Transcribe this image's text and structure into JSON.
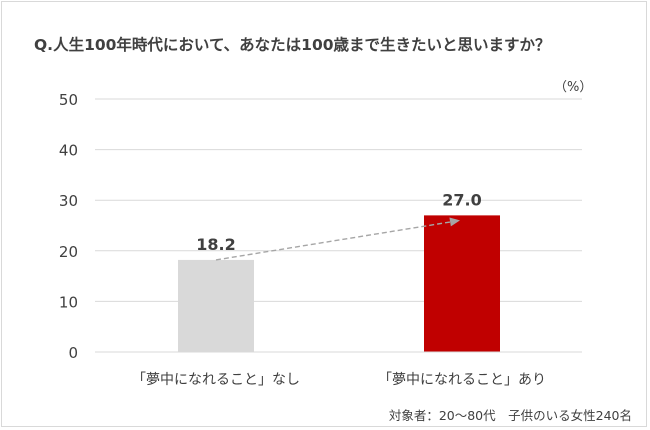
{
  "title": "Q.人生100年時代において、あなたは100歳まで生きたいと思いますか？",
  "unit": "（%）",
  "note": "対象者：20～80代　子供のいる女性240名",
  "colors": {
    "bar_without": "#d9d9d9",
    "bar_with": "#c00000",
    "grid": "#d9d9d9",
    "arrow": "#a6a6a6"
  },
  "chart_data": {
    "type": "bar",
    "categories": [
      "「夢中になれること」なし",
      "「夢中になれること」あり"
    ],
    "values": [
      18.2,
      27.0
    ],
    "value_labels": [
      "18.2",
      "27.0"
    ],
    "ylim": [
      0,
      50
    ],
    "yticks": [
      "0",
      "10",
      "20",
      "30",
      "40",
      "50"
    ],
    "grid": true,
    "annotation": "dashed arrow from first bar top to second bar top"
  }
}
